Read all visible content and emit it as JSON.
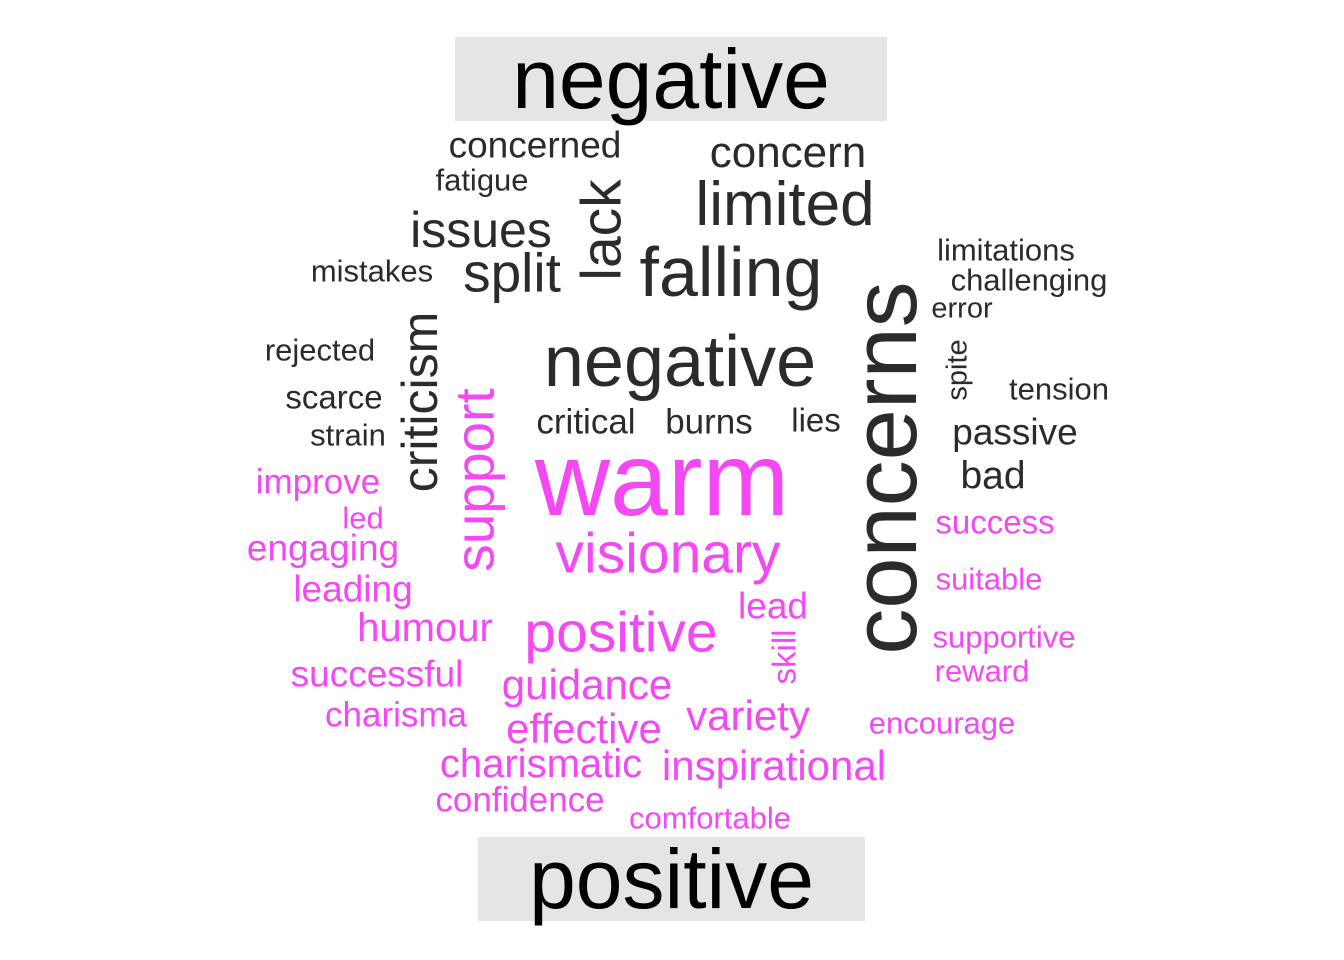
{
  "colors": {
    "negative": "#2b2b2b",
    "positive": "#f348f3",
    "label_bg": "#e5e5e5"
  },
  "groups": {
    "negative": {
      "label": "negative"
    },
    "positive": {
      "label": "positive"
    }
  },
  "words": [
    {
      "text": "concerned",
      "group": "negative",
      "rotated": false
    },
    {
      "text": "fatigue",
      "group": "negative",
      "rotated": false
    },
    {
      "text": "concern",
      "group": "negative",
      "rotated": false
    },
    {
      "text": "limited",
      "group": "negative",
      "rotated": false
    },
    {
      "text": "lack",
      "group": "negative",
      "rotated": true
    },
    {
      "text": "issues",
      "group": "negative",
      "rotated": false
    },
    {
      "text": "split",
      "group": "negative",
      "rotated": false
    },
    {
      "text": "falling",
      "group": "negative",
      "rotated": false
    },
    {
      "text": "mistakes",
      "group": "negative",
      "rotated": false
    },
    {
      "text": "concerns",
      "group": "negative",
      "rotated": true
    },
    {
      "text": "limitations",
      "group": "negative",
      "rotated": false
    },
    {
      "text": "challenging",
      "group": "negative",
      "rotated": false
    },
    {
      "text": "error",
      "group": "negative",
      "rotated": false
    },
    {
      "text": "rejected",
      "group": "negative",
      "rotated": false
    },
    {
      "text": "criticism",
      "group": "negative",
      "rotated": true
    },
    {
      "text": "negative",
      "group": "negative",
      "rotated": false
    },
    {
      "text": "spite",
      "group": "negative",
      "rotated": true
    },
    {
      "text": "scarce",
      "group": "negative",
      "rotated": false
    },
    {
      "text": "tension",
      "group": "negative",
      "rotated": false
    },
    {
      "text": "strain",
      "group": "negative",
      "rotated": false
    },
    {
      "text": "critical",
      "group": "negative",
      "rotated": false
    },
    {
      "text": "burns",
      "group": "negative",
      "rotated": false
    },
    {
      "text": "lies",
      "group": "negative",
      "rotated": false
    },
    {
      "text": "passive",
      "group": "negative",
      "rotated": false
    },
    {
      "text": "bad",
      "group": "negative",
      "rotated": false
    },
    {
      "text": "support",
      "group": "positive",
      "rotated": true
    },
    {
      "text": "warm",
      "group": "positive",
      "rotated": false
    },
    {
      "text": "improve",
      "group": "positive",
      "rotated": false
    },
    {
      "text": "led",
      "group": "positive",
      "rotated": false
    },
    {
      "text": "success",
      "group": "positive",
      "rotated": false
    },
    {
      "text": "engaging",
      "group": "positive",
      "rotated": false
    },
    {
      "text": "visionary",
      "group": "positive",
      "rotated": false
    },
    {
      "text": "leading",
      "group": "positive",
      "rotated": false
    },
    {
      "text": "suitable",
      "group": "positive",
      "rotated": false
    },
    {
      "text": "lead",
      "group": "positive",
      "rotated": false
    },
    {
      "text": "humour",
      "group": "positive",
      "rotated": false
    },
    {
      "text": "positive",
      "group": "positive",
      "rotated": false
    },
    {
      "text": "skill",
      "group": "positive",
      "rotated": true
    },
    {
      "text": "supportive",
      "group": "positive",
      "rotated": false
    },
    {
      "text": "reward",
      "group": "positive",
      "rotated": false
    },
    {
      "text": "successful",
      "group": "positive",
      "rotated": false
    },
    {
      "text": "guidance",
      "group": "positive",
      "rotated": false
    },
    {
      "text": "charisma",
      "group": "positive",
      "rotated": false
    },
    {
      "text": "variety",
      "group": "positive",
      "rotated": false
    },
    {
      "text": "encourage",
      "group": "positive",
      "rotated": false
    },
    {
      "text": "effective",
      "group": "positive",
      "rotated": false
    },
    {
      "text": "charismatic",
      "group": "positive",
      "rotated": false
    },
    {
      "text": "inspirational",
      "group": "positive",
      "rotated": false
    },
    {
      "text": "confidence",
      "group": "positive",
      "rotated": false
    },
    {
      "text": "comfortable",
      "group": "positive",
      "rotated": false
    }
  ]
}
